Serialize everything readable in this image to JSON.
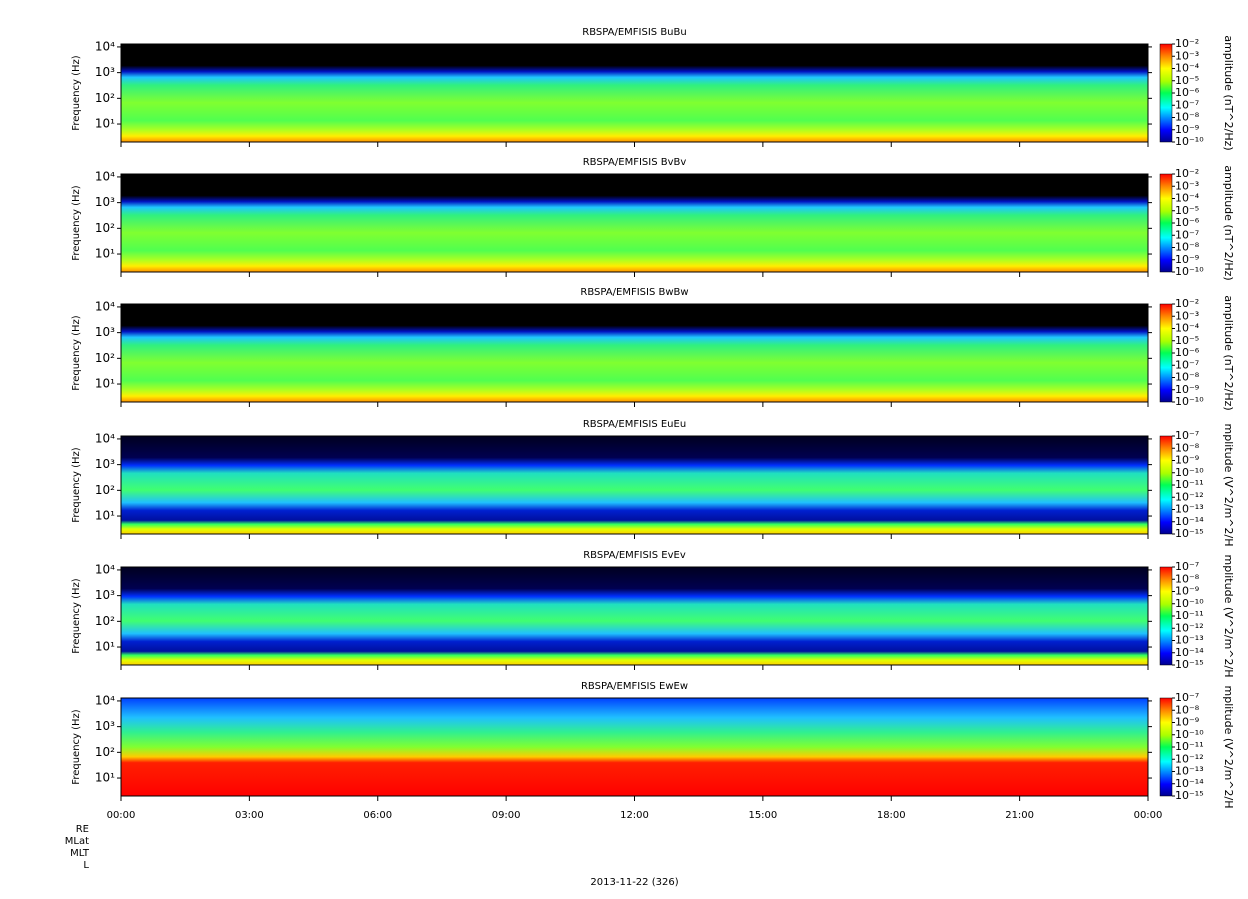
{
  "chart_data": [
    {
      "type": "spectrogram",
      "title": "RBSPA/EMFISIS  BuBu",
      "ylabel": "Frequency (Hz)",
      "log_y": true,
      "ylim": [
        2,
        13000
      ],
      "yticks": [
        {
          "value": 10,
          "label": "10¹"
        },
        {
          "value": 100,
          "label": "10²"
        },
        {
          "value": 1000,
          "label": "10³"
        },
        {
          "value": 10000,
          "label": "10⁴"
        }
      ],
      "colorbar_label": "amplitude (nT^2/Hz)",
      "clim": [
        1e-10,
        0.01
      ],
      "cticks": [
        {
          "value": 0.01,
          "label": "10⁻²"
        },
        {
          "value": 0.001,
          "label": "10⁻³"
        },
        {
          "value": 0.0001,
          "label": "10⁻⁴"
        },
        {
          "value": 1e-05,
          "label": "10⁻⁵"
        },
        {
          "value": 1e-06,
          "label": "10⁻⁶"
        },
        {
          "value": 1e-07,
          "label": "10⁻⁷"
        },
        {
          "value": 1e-08,
          "label": "10⁻⁸"
        },
        {
          "value": 1e-09,
          "label": "10⁻⁹"
        },
        {
          "value": 1e-10,
          "label": "10⁻¹⁰"
        }
      ]
    },
    {
      "type": "spectrogram",
      "title": "RBSPA/EMFISIS  BvBv",
      "ylabel": "Frequency (Hz)",
      "log_y": true,
      "ylim": [
        2,
        13000
      ],
      "yticks": [
        {
          "value": 10,
          "label": "10¹"
        },
        {
          "value": 100,
          "label": "10²"
        },
        {
          "value": 1000,
          "label": "10³"
        },
        {
          "value": 10000,
          "label": "10⁴"
        }
      ],
      "colorbar_label": "amplitude (nT^2/Hz)",
      "clim": [
        1e-10,
        0.01
      ],
      "cticks": [
        {
          "value": 0.01,
          "label": "10⁻²"
        },
        {
          "value": 0.001,
          "label": "10⁻³"
        },
        {
          "value": 0.0001,
          "label": "10⁻⁴"
        },
        {
          "value": 1e-05,
          "label": "10⁻⁵"
        },
        {
          "value": 1e-06,
          "label": "10⁻⁶"
        },
        {
          "value": 1e-07,
          "label": "10⁻⁷"
        },
        {
          "value": 1e-08,
          "label": "10⁻⁸"
        },
        {
          "value": 1e-09,
          "label": "10⁻⁹"
        },
        {
          "value": 1e-10,
          "label": "10⁻¹⁰"
        }
      ]
    },
    {
      "type": "spectrogram",
      "title": "RBSPA/EMFISIS  BwBw",
      "ylabel": "Frequency (Hz)",
      "log_y": true,
      "ylim": [
        2,
        13000
      ],
      "yticks": [
        {
          "value": 10,
          "label": "10¹"
        },
        {
          "value": 100,
          "label": "10²"
        },
        {
          "value": 1000,
          "label": "10³"
        },
        {
          "value": 10000,
          "label": "10⁴"
        }
      ],
      "colorbar_label": "amplitude (nT^2/Hz)",
      "clim": [
        1e-10,
        0.01
      ],
      "cticks": [
        {
          "value": 0.01,
          "label": "10⁻²"
        },
        {
          "value": 0.001,
          "label": "10⁻³"
        },
        {
          "value": 0.0001,
          "label": "10⁻⁴"
        },
        {
          "value": 1e-05,
          "label": "10⁻⁵"
        },
        {
          "value": 1e-06,
          "label": "10⁻⁶"
        },
        {
          "value": 1e-07,
          "label": "10⁻⁷"
        },
        {
          "value": 1e-08,
          "label": "10⁻⁸"
        },
        {
          "value": 1e-09,
          "label": "10⁻⁹"
        },
        {
          "value": 1e-10,
          "label": "10⁻¹⁰"
        }
      ]
    },
    {
      "type": "spectrogram",
      "title": "RBSPA/EMFISIS  EuEu",
      "ylabel": "Frequency (Hz)",
      "log_y": true,
      "ylim": [
        2,
        13000
      ],
      "yticks": [
        {
          "value": 10,
          "label": "10¹"
        },
        {
          "value": 100,
          "label": "10²"
        },
        {
          "value": 1000,
          "label": "10³"
        },
        {
          "value": 10000,
          "label": "10⁴"
        }
      ],
      "colorbar_label": "mplitude (V^2/m^2/H",
      "clim": [
        1e-15,
        1e-07
      ],
      "cticks": [
        {
          "value": 1e-07,
          "label": "10⁻⁷"
        },
        {
          "value": 1e-08,
          "label": "10⁻⁸"
        },
        {
          "value": 1e-09,
          "label": "10⁻⁹"
        },
        {
          "value": 1e-10,
          "label": "10⁻¹⁰"
        },
        {
          "value": 1e-11,
          "label": "10⁻¹¹"
        },
        {
          "value": 1e-12,
          "label": "10⁻¹²"
        },
        {
          "value": 1e-13,
          "label": "10⁻¹³"
        },
        {
          "value": 1e-14,
          "label": "10⁻¹⁴"
        },
        {
          "value": 1e-15,
          "label": "10⁻¹⁵"
        }
      ]
    },
    {
      "type": "spectrogram",
      "title": "RBSPA/EMFISIS  EvEv",
      "ylabel": "Frequency (Hz)",
      "log_y": true,
      "ylim": [
        2,
        13000
      ],
      "yticks": [
        {
          "value": 10,
          "label": "10¹"
        },
        {
          "value": 100,
          "label": "10²"
        },
        {
          "value": 1000,
          "label": "10³"
        },
        {
          "value": 10000,
          "label": "10⁴"
        }
      ],
      "colorbar_label": "mplitude (V^2/m^2/H",
      "clim": [
        1e-15,
        1e-07
      ],
      "cticks": [
        {
          "value": 1e-07,
          "label": "10⁻⁷"
        },
        {
          "value": 1e-08,
          "label": "10⁻⁸"
        },
        {
          "value": 1e-09,
          "label": "10⁻⁹"
        },
        {
          "value": 1e-10,
          "label": "10⁻¹⁰"
        },
        {
          "value": 1e-11,
          "label": "10⁻¹¹"
        },
        {
          "value": 1e-12,
          "label": "10⁻¹²"
        },
        {
          "value": 1e-13,
          "label": "10⁻¹³"
        },
        {
          "value": 1e-14,
          "label": "10⁻¹⁴"
        },
        {
          "value": 1e-15,
          "label": "10⁻¹⁵"
        }
      ]
    },
    {
      "type": "spectrogram",
      "title": "RBSPA/EMFISIS  EwEw",
      "ylabel": "Frequency (Hz)",
      "log_y": true,
      "ylim": [
        2,
        13000
      ],
      "yticks": [
        {
          "value": 10,
          "label": "10¹"
        },
        {
          "value": 100,
          "label": "10²"
        },
        {
          "value": 1000,
          "label": "10³"
        },
        {
          "value": 10000,
          "label": "10⁴"
        }
      ],
      "colorbar_label": "mplitude (V^2/m^2/H",
      "clim": [
        1e-15,
        1e-07
      ],
      "cticks": [
        {
          "value": 1e-07,
          "label": "10⁻⁷"
        },
        {
          "value": 1e-08,
          "label": "10⁻⁸"
        },
        {
          "value": 1e-09,
          "label": "10⁻⁹"
        },
        {
          "value": 1e-10,
          "label": "10⁻¹⁰"
        },
        {
          "value": 1e-11,
          "label": "10⁻¹¹"
        },
        {
          "value": 1e-12,
          "label": "10⁻¹²"
        },
        {
          "value": 1e-13,
          "label": "10⁻¹³"
        },
        {
          "value": 1e-14,
          "label": "10⁻¹⁴"
        },
        {
          "value": 1e-15,
          "label": "10⁻¹⁵"
        }
      ],
      "xlim": [
        0,
        24
      ],
      "xticks": [
        {
          "value": 0,
          "label": "00:00"
        },
        {
          "value": 3,
          "label": "03:00"
        },
        {
          "value": 6,
          "label": "06:00"
        },
        {
          "value": 9,
          "label": "09:00"
        },
        {
          "value": 12,
          "label": "12:00"
        },
        {
          "value": 15,
          "label": "15:00"
        },
        {
          "value": 18,
          "label": "18:00"
        },
        {
          "value": 21,
          "label": "21:00"
        },
        {
          "value": 24,
          "label": "00:00"
        }
      ],
      "orbit_labels": [
        "RE",
        "MLat",
        "MLT",
        "L"
      ],
      "xlabel": "2013-11-22 (326)"
    }
  ]
}
